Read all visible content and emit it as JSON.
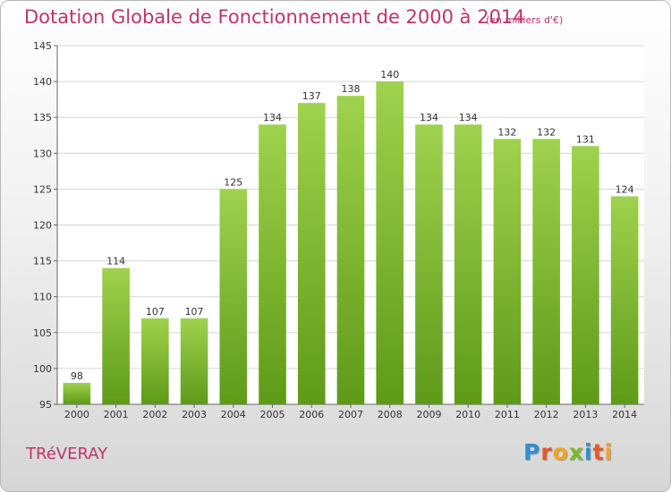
{
  "header": {
    "title": "Dotation Globale de Fonctionnement de 2000 à 2014",
    "subtitle": "(en milliers d'€)"
  },
  "footer": {
    "town": "TRéVERAY",
    "logo_letters": [
      "P",
      "r",
      "o",
      "x",
      "i",
      "t",
      "i"
    ],
    "logo_colors": [
      "#2f8fd0",
      "#e8572c",
      "#f2a51e",
      "#7ab829",
      "#2f8fd0",
      "#e8572c",
      "#f2a51e"
    ]
  },
  "colors": {
    "accent": "#c0346a",
    "bar_light": "#9fd24e",
    "bar_dark": "#5e9a18",
    "grid": "#d5d5d5",
    "axis_text": "#333333"
  },
  "chart_data": {
    "type": "bar",
    "title": "Dotation Globale de Fonctionnement de 2000 à 2014",
    "subtitle": "(en milliers d'€)",
    "categories": [
      "2000",
      "2001",
      "2002",
      "2003",
      "2004",
      "2005",
      "2006",
      "2007",
      "2008",
      "2009",
      "2010",
      "2011",
      "2012",
      "2013",
      "2014"
    ],
    "values": [
      98,
      114,
      107,
      107,
      125,
      134,
      137,
      138,
      140,
      134,
      134,
      132,
      132,
      131,
      124
    ],
    "ylim": [
      95,
      145
    ],
    "yticks": [
      95,
      100,
      105,
      110,
      115,
      120,
      125,
      130,
      135,
      140,
      145
    ],
    "grid": true,
    "xlabel": "",
    "ylabel": ""
  }
}
